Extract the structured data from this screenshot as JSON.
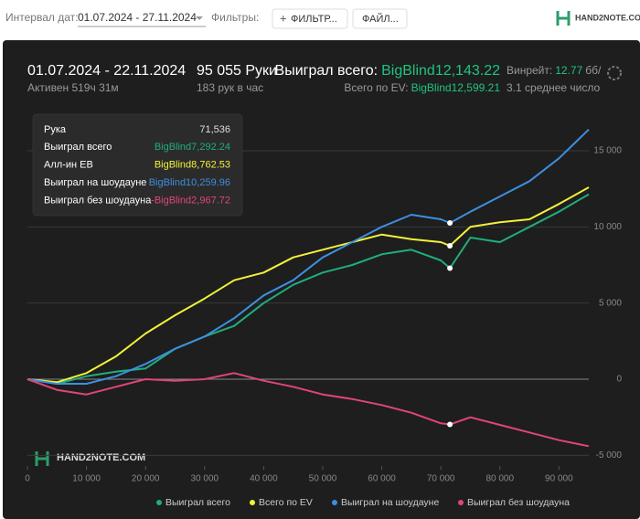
{
  "toolbar": {
    "date_label": "Интервал дат:",
    "date_range": "01.07.2024 - 27.11.2024",
    "filters_label": "Фильтры:",
    "filter_button": "ФИЛЬТР...",
    "file_button": "ФАЙЛ...",
    "logo": "HAND2NOTE.COM"
  },
  "summary": {
    "period": "01.07.2024 - 22.11.2024",
    "active": "Активен 519ч 31м",
    "hands": "95 055 Руки",
    "hands_per_hour": "183 рук в час",
    "won_label": "Выиграл всего:",
    "won_value": "BigBlind12,143.22",
    "ev_label": "Всего по EV:",
    "ev_value": "BigBlind12,599.21",
    "winrate_label": "Винрейт:",
    "winrate_value": "12.77",
    "winrate_unit": "бб/",
    "avg": "3.1 среднее число"
  },
  "tooltip": {
    "hand_label": "Рука",
    "hand": {
      "value": 71536,
      "label": "71,536"
    },
    "rows": [
      {
        "label": "Выиграл всего",
        "value": "BigBlind7,292.24"
      },
      {
        "label": "Алл-ин ЕВ",
        "value": "BigBlind8,762.53"
      },
      {
        "label": "Выиграл на шоудауне",
        "value": "BigBlind10,259.96"
      },
      {
        "label": "Выиграл без шоудауна",
        "value": "-BigBlind2,967.72"
      }
    ]
  },
  "chart_data": {
    "type": "line",
    "watermark": "HAND2NOTE.COM",
    "x": [
      0,
      5000,
      10000,
      15000,
      20000,
      25000,
      30000,
      35000,
      40000,
      45000,
      50000,
      55000,
      60000,
      65000,
      70000,
      71536,
      75000,
      80000,
      85000,
      90000,
      95055
    ],
    "series": [
      {
        "name": "Выиграл всего",
        "color": "#1fae7a",
        "values": [
          0,
          -300,
          200,
          500,
          700,
          2000,
          2800,
          3500,
          5000,
          6200,
          7000,
          7500,
          8200,
          8500,
          7800,
          7292,
          9300,
          9000,
          10000,
          11000,
          12143
        ]
      },
      {
        "name": "Всего по EV",
        "color": "#f2f23a",
        "values": [
          0,
          -200,
          400,
          1500,
          3000,
          4200,
          5300,
          6500,
          7000,
          8000,
          8500,
          9000,
          9500,
          9200,
          9000,
          8763,
          10000,
          10300,
          10500,
          11500,
          12599
        ]
      },
      {
        "name": "Выиграл на шоудауне",
        "color": "#3d8fe0",
        "values": [
          0,
          -300,
          -300,
          200,
          1000,
          2000,
          2800,
          4000,
          5500,
          6500,
          8000,
          9000,
          10000,
          10800,
          10500,
          10260,
          11000,
          12000,
          13000,
          14500,
          16400
        ]
      },
      {
        "name": "Выиграл без шоудауна",
        "color": "#e0457a",
        "values": [
          0,
          -700,
          -1000,
          -500,
          0,
          -100,
          0,
          400,
          -100,
          -500,
          -1000,
          -1300,
          -1700,
          -2200,
          -2900,
          -2968,
          -2500,
          -3000,
          -3500,
          -4000,
          -4400
        ]
      }
    ],
    "xlim": [
      0,
      95055
    ],
    "ylim": [
      -5700,
      17580
    ],
    "xticks": [
      0,
      {
        "value": 10000,
        "label": "10 000"
      },
      {
        "value": 20000,
        "label": "20 000"
      },
      {
        "value": 30000,
        "label": "30 000"
      },
      {
        "value": 40000,
        "label": "40 000"
      },
      {
        "value": 50000,
        "label": "50 000"
      },
      {
        "value": 60000,
        "label": "60 000"
      },
      {
        "value": 70000,
        "label": "70 000"
      },
      {
        "value": 80000,
        "label": "80 000"
      },
      {
        "value": 90000,
        "label": "90 000"
      }
    ],
    "yticks": [
      {
        "value": -5000,
        "label": "-5 000"
      },
      0,
      {
        "value": 5000,
        "label": "5 000"
      },
      {
        "value": 10000,
        "label": "10 000"
      },
      {
        "value": 15000,
        "label": "15 000"
      }
    ],
    "grid": true
  }
}
